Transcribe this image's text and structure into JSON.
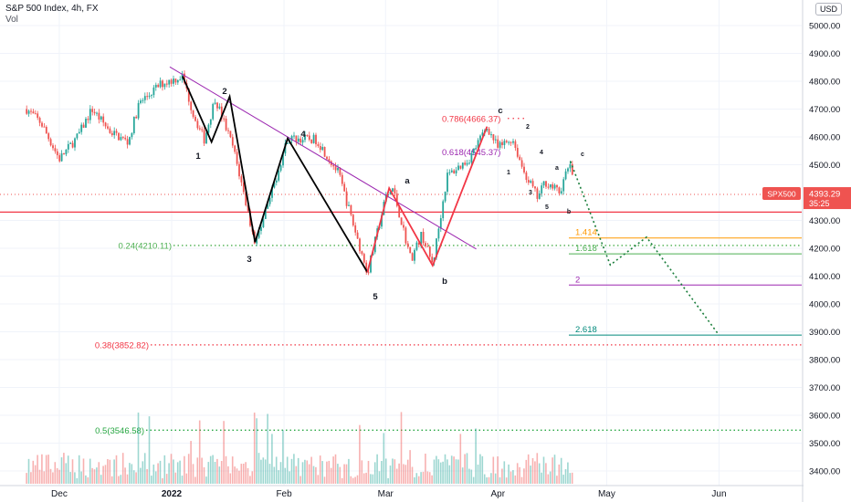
{
  "header": {
    "title": "S&P 500 Index, 4h, FX",
    "sub": "Vol"
  },
  "price_axis": {
    "currency": "USD",
    "ticks": [
      "5000.00",
      "4900.00",
      "4800.00",
      "4700.00",
      "4600.00",
      "4500.00",
      "4300.00",
      "4200.00",
      "4100.00",
      "4000.00",
      "3900.00",
      "3800.00",
      "3700.00",
      "3600.00",
      "3500.00",
      "3400.00"
    ]
  },
  "time_axis": {
    "ticks": [
      "Dec",
      "2022",
      "Feb",
      "Mar",
      "Apr",
      "May",
      "Jun"
    ]
  },
  "price_tag": {
    "symbol": "SPX500",
    "price": "4393.29",
    "countdown": "35:25"
  },
  "fib_levels": [
    {
      "label": "0.24(4210.11)",
      "value": 4210.11,
      "color": "#4caf50"
    },
    {
      "label": "0.38(3852.82)",
      "value": 3852.82,
      "color": "#f23645"
    },
    {
      "label": "0.5(3546.58)",
      "value": 3546.58,
      "color": "#26a641"
    },
    {
      "label": "0.786(4666.37)",
      "value": 4666.37,
      "color": "#f23645"
    },
    {
      "label": "0.618(4545.37)",
      "value": 4545.37,
      "color": "#9c27b0"
    }
  ],
  "extensions": [
    {
      "label": "1.414",
      "value": 4237,
      "color": "#ff9800"
    },
    {
      "label": "1.618",
      "value": 4180,
      "color": "#4caf50"
    },
    {
      "label": "2",
      "value": 4068,
      "color": "#9c27b0"
    },
    {
      "label": "2.618",
      "value": 3888,
      "color": "#00897b"
    }
  ],
  "wave_labels": {
    "main": [
      "1",
      "2",
      "3",
      "4",
      "5",
      "a",
      "b",
      "c"
    ],
    "minor": [
      "1",
      "2",
      "3",
      "4",
      "5",
      "a",
      "b",
      "c"
    ]
  },
  "colors": {
    "up": "#26a69a",
    "down": "#ef5350",
    "wave": "#000000",
    "corrective": "#f23645",
    "trendline": "#9c27b0",
    "projection": "#1b7e3c",
    "support": "#f23645"
  },
  "chart_data": {
    "type": "candlestick",
    "title": "S&P 500 Index, 4h, FX",
    "ylim": [
      3350,
      5050
    ],
    "x_ticks": [
      "Dec",
      "2022",
      "Feb",
      "Mar",
      "Apr",
      "May",
      "Jun"
    ],
    "path": [
      [
        "2021-11-22",
        4700
      ],
      [
        "2021-11-26",
        4650
      ],
      [
        "2021-12-01",
        4520
      ],
      [
        "2021-12-06",
        4600
      ],
      [
        "2021-12-10",
        4700
      ],
      [
        "2021-12-15",
        4620
      ],
      [
        "2021-12-20",
        4580
      ],
      [
        "2021-12-23",
        4720
      ],
      [
        "2021-12-29",
        4790
      ],
      [
        "2022-01-04",
        4818
      ],
      [
        "2022-01-07",
        4680
      ],
      [
        "2022-01-10",
        4590
      ],
      [
        "2022-01-13",
        4740
      ],
      [
        "2022-01-18",
        4560
      ],
      [
        "2022-01-24",
        4220
      ],
      [
        "2022-01-27",
        4330
      ],
      [
        "2022-02-02",
        4595
      ],
      [
        "2022-02-10",
        4590
      ],
      [
        "2022-02-16",
        4470
      ],
      [
        "2022-02-24",
        4110
      ],
      [
        "2022-03-01",
        4380
      ],
      [
        "2022-03-03",
        4415
      ],
      [
        "2022-03-08",
        4160
      ],
      [
        "2022-03-11",
        4250
      ],
      [
        "2022-03-14",
        4140
      ],
      [
        "2022-03-18",
        4460
      ],
      [
        "2022-03-24",
        4520
      ],
      [
        "2022-03-29",
        4637
      ],
      [
        "2022-04-01",
        4560
      ],
      [
        "2022-04-05",
        4595
      ],
      [
        "2022-04-08",
        4480
      ],
      [
        "2022-04-12",
        4380
      ],
      [
        "2022-04-14",
        4440
      ],
      [
        "2022-04-18",
        4400
      ],
      [
        "2022-04-21",
        4512
      ],
      [
        "2022-04-22",
        4393
      ]
    ],
    "waves": {
      "impulse": [
        [
          "2022-01-04",
          4818
        ],
        [
          "2022-01-12",
          4582
        ],
        [
          "2022-01-17",
          4745
        ],
        [
          "2022-01-24",
          4222
        ],
        [
          "2022-02-02",
          4595
        ],
        [
          "2022-02-24",
          4114
        ]
      ],
      "corrective": [
        [
          "2022-02-24",
          4114
        ],
        [
          "2022-03-02",
          4416
        ],
        [
          "2022-03-14",
          4138
        ],
        [
          "2022-03-29",
          4637
        ]
      ],
      "projection": [
        [
          "2022-04-21",
          4512
        ],
        [
          "2022-05-02",
          4140
        ],
        [
          "2022-05-12",
          4240
        ],
        [
          "2022-06-01",
          3888
        ]
      ]
    },
    "trendline": [
      [
        "2022-01-03",
        4845
      ],
      [
        "2022-03-23",
        4230
      ]
    ],
    "support": 4330,
    "last_price": 4393.29
  }
}
